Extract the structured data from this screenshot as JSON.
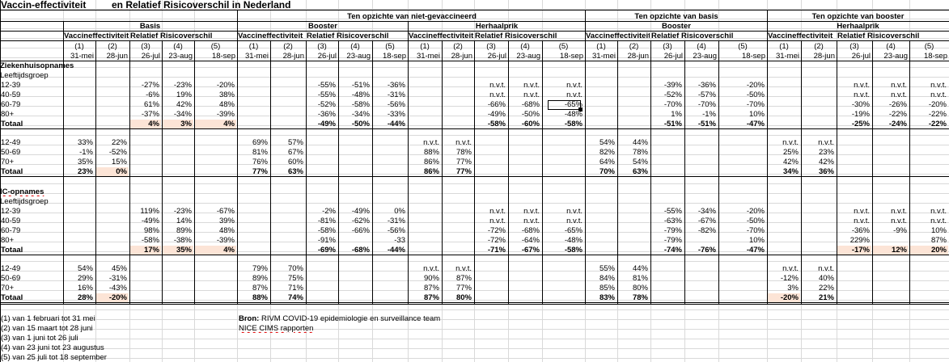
{
  "title": {
    "a": "Vaccin-effectiviteit",
    "b": "en Relatief Risicoverschil in Nederland"
  },
  "groups": {
    "niet": "Ten opzichte van niet-gevaccineerd",
    "basis": "Ten opzichte van basis",
    "booster": "Ten opzichte van booster"
  },
  "subgroups": {
    "basis": "Basis",
    "booster": "Booster",
    "herhaalprik": "Herhaalprik",
    "basis_booster": "Booster",
    "booster_herhaalprik": "Herhaalprik"
  },
  "labels": {
    "ve": "Vaccineffectiviteit",
    "rr": "Relatief Risicoverschil"
  },
  "cols": {
    "nums": [
      "(1)",
      "(2)",
      "(3)",
      "(4)",
      "(5)"
    ],
    "dates": [
      "31-mei",
      "28-jun",
      "26-jul",
      "23-aug",
      "18-sep"
    ]
  },
  "sections": {
    "hosp": "Ziekenhuisopnames",
    "ic": "IC-opnames",
    "lg": "Leeftijdsgroep",
    "total": "Totaal"
  },
  "rows": {
    "h1": {
      "label": "12-39",
      "v": [
        "",
        "",
        "-27%",
        "-23%",
        "-20%",
        "",
        "",
        "-55%",
        "-51%",
        "-36%",
        "",
        "",
        "n.v.t.",
        "n.v.t.",
        "n.v.t.",
        "",
        "",
        "-39%",
        "-36%",
        "-20%",
        "",
        "",
        "n.v.t.",
        "n.v.t.",
        "n.v.t."
      ]
    },
    "h2": {
      "label": "40-59",
      "v": [
        "",
        "",
        "-6%",
        "19%",
        "38%",
        "",
        "",
        "-55%",
        "-48%",
        "-31%",
        "",
        "",
        "n.v.t.",
        "n.v.t.",
        "n.v.t.",
        "",
        "",
        "-52%",
        "-57%",
        "-50%",
        "",
        "",
        "n.v.t.",
        "n.v.t.",
        "n.v.t."
      ]
    },
    "h3": {
      "label": "60-79",
      "v": [
        "",
        "",
        "61%",
        "42%",
        "48%",
        "",
        "",
        "-52%",
        "-58%",
        "-56%",
        "",
        "",
        "-66%",
        "-68%",
        "-65%",
        "",
        "",
        "-70%",
        "-70%",
        "-70%",
        "",
        "",
        "-30%",
        "-26%",
        "-20%"
      ]
    },
    "h4": {
      "label": "80+",
      "v": [
        "",
        "",
        "-37%",
        "-34%",
        "-39%",
        "",
        "",
        "-36%",
        "-34%",
        "-33%",
        "",
        "",
        "-49%",
        "-50%",
        "-48%",
        "",
        "",
        "1%",
        "-1%",
        "10%",
        "",
        "",
        "-19%",
        "-22%",
        "-22%"
      ]
    },
    "h5": {
      "label": "Totaal",
      "v": [
        "",
        "",
        "4%",
        "3%",
        "4%",
        "",
        "",
        "-49%",
        "-50%",
        "-44%",
        "",
        "",
        "-58%",
        "-60%",
        "-58%",
        "",
        "",
        "-51%",
        "-51%",
        "-47%",
        "",
        "",
        "-25%",
        "-24%",
        "-22%"
      ]
    },
    "h6": {
      "label": "12-49",
      "v": [
        "33%",
        "22%",
        "",
        "",
        "",
        "69%",
        "57%",
        "",
        "",
        "",
        "n.v.t.",
        "n.v.t.",
        "",
        "",
        "",
        "54%",
        "44%",
        "",
        "",
        "",
        "n.v.t.",
        "n.v.t.",
        "",
        "",
        ""
      ]
    },
    "h7": {
      "label": "50-69",
      "v": [
        "-1%",
        "-52%",
        "",
        "",
        "",
        "81%",
        "67%",
        "",
        "",
        "",
        "88%",
        "78%",
        "",
        "",
        "",
        "82%",
        "78%",
        "",
        "",
        "",
        "25%",
        "23%",
        "",
        "",
        ""
      ]
    },
    "h8": {
      "label": "70+",
      "v": [
        "35%",
        "15%",
        "",
        "",
        "",
        "76%",
        "60%",
        "",
        "",
        "",
        "86%",
        "77%",
        "",
        "",
        "",
        "64%",
        "54%",
        "",
        "",
        "",
        "42%",
        "42%",
        "",
        "",
        ""
      ]
    },
    "h9": {
      "label": "Totaal",
      "v": [
        "23%",
        "0%",
        "",
        "",
        "",
        "77%",
        "63%",
        "",
        "",
        "",
        "86%",
        "77%",
        "",
        "",
        "",
        "70%",
        "63%",
        "",
        "",
        "",
        "34%",
        "36%",
        "",
        "",
        ""
      ]
    },
    "i1": {
      "label": "12-39",
      "v": [
        "",
        "",
        "119%",
        "-23%",
        "-67%",
        "",
        "",
        "-2%",
        "-49%",
        "0%",
        "",
        "",
        "n.v.t.",
        "n.v.t.",
        "n.v.t.",
        "",
        "",
        "-55%",
        "-34%",
        "-20%",
        "",
        "",
        "n.v.t.",
        "n.v.t.",
        "n.v.t."
      ]
    },
    "i2": {
      "label": "40-59",
      "v": [
        "",
        "",
        "-49%",
        "14%",
        "39%",
        "",
        "",
        "-81%",
        "-62%",
        "-31%",
        "",
        "",
        "n.v.t.",
        "n.v.t.",
        "n.v.t.",
        "",
        "",
        "-63%",
        "-67%",
        "-50%",
        "",
        "",
        "n.v.t.",
        "n.v.t.",
        "n.v.t."
      ]
    },
    "i3": {
      "label": "60-79",
      "v": [
        "",
        "",
        "98%",
        "89%",
        "48%",
        "",
        "",
        "-58%",
        "-66%",
        "-56%",
        "",
        "",
        "-72%",
        "-68%",
        "-65%",
        "",
        "",
        "-79%",
        "-82%",
        "-70%",
        "",
        "",
        "-36%",
        "-9%",
        "10%"
      ]
    },
    "i4": {
      "label": "80+",
      "v": [
        "",
        "",
        "-58%",
        "-38%",
        "-39%",
        "",
        "",
        "-91%",
        "",
        "-33",
        "",
        "",
        "-72%",
        "-64%",
        "-48%",
        "",
        "",
        "-79%",
        "",
        "10%",
        "",
        "",
        "229%",
        "",
        "87%"
      ]
    },
    "i5": {
      "label": "Totaal",
      "v": [
        "",
        "",
        "17%",
        "35%",
        "4%",
        "",
        "",
        "-69%",
        "-68%",
        "-44%",
        "",
        "",
        "-71%",
        "-67%",
        "-58%",
        "",
        "",
        "-74%",
        "-76%",
        "-47%",
        "",
        "",
        "-17%",
        "12%",
        "20%"
      ]
    },
    "i6": {
      "label": "12-49",
      "v": [
        "54%",
        "45%",
        "",
        "",
        "",
        "79%",
        "70%",
        "",
        "",
        "",
        "n.v.t.",
        "n.v.t.",
        "",
        "",
        "",
        "55%",
        "44%",
        "",
        "",
        "",
        "n.v.t.",
        "n.v.t.",
        "",
        "",
        ""
      ]
    },
    "i7": {
      "label": "50-69",
      "v": [
        "29%",
        "-31%",
        "",
        "",
        "",
        "89%",
        "75%",
        "",
        "",
        "",
        "90%",
        "87%",
        "",
        "",
        "",
        "84%",
        "81%",
        "",
        "",
        "",
        "-12%",
        "40%",
        "",
        "",
        ""
      ]
    },
    "i8": {
      "label": "70+",
      "v": [
        "16%",
        "-43%",
        "",
        "",
        "",
        "87%",
        "71%",
        "",
        "",
        "",
        "87%",
        "77%",
        "",
        "",
        "",
        "85%",
        "80%",
        "",
        "",
        "",
        "3%",
        "22%",
        "",
        "",
        ""
      ]
    },
    "i9": {
      "label": "Totaal",
      "v": [
        "28%",
        "-20%",
        "",
        "",
        "",
        "88%",
        "74%",
        "",
        "",
        "",
        "87%",
        "80%",
        "",
        "",
        "",
        "83%",
        "78%",
        "",
        "",
        "",
        "-20%",
        "21%",
        "",
        "",
        ""
      ]
    }
  },
  "footnotes": [
    "(1) van 1 februari tot 31 mei",
    "(2) van 15 maart tot 28 juni",
    "(3) van 1 juni tot 26 juli",
    "(4) van 23 juni tot 23 augustus",
    "(5) van 25 juli tot 18 september"
  ],
  "source": {
    "label": "Bron:",
    "text": "RIVM COVID-19 epidemiologie en surveillance team",
    "line2": "NICE CIMS rapporten"
  },
  "colors": {
    "highlight": "#fce4d6",
    "grid": "#d9d9d9",
    "wavy": "#e00000"
  }
}
